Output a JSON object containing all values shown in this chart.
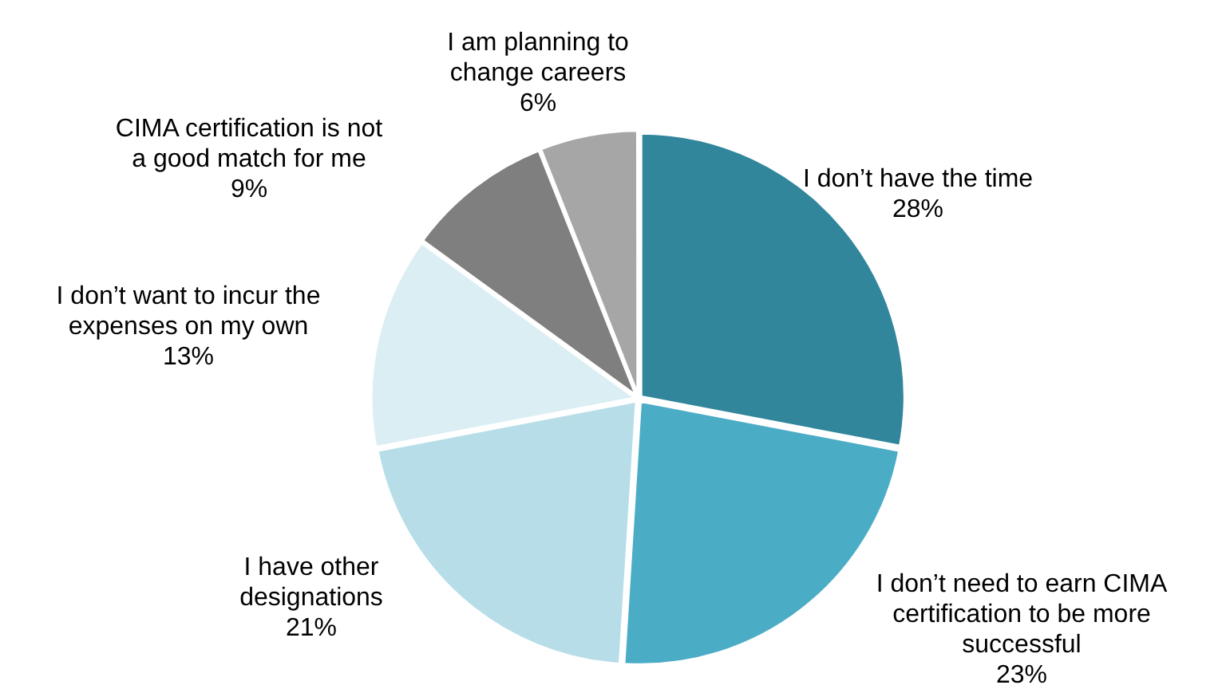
{
  "chart_data": {
    "type": "pie",
    "categories": [
      "I don’t have the time",
      "I don’t need to earn CIMA certification to be more successful",
      "I have other designations",
      "I don’t want to incur the expenses on my own",
      "CIMA certification is not a good match for me",
      "I am planning to change careers"
    ],
    "values": [
      28,
      23,
      21,
      13,
      9,
      6
    ],
    "colors": [
      "#31869b",
      "#4bacc6",
      "#b7dee8",
      "#daeef3",
      "#7f7f7f",
      "#a6a6a6"
    ],
    "value_labels": [
      "28%",
      "23%",
      "21%",
      "13%",
      "9%",
      "6%"
    ],
    "legend": false
  }
}
